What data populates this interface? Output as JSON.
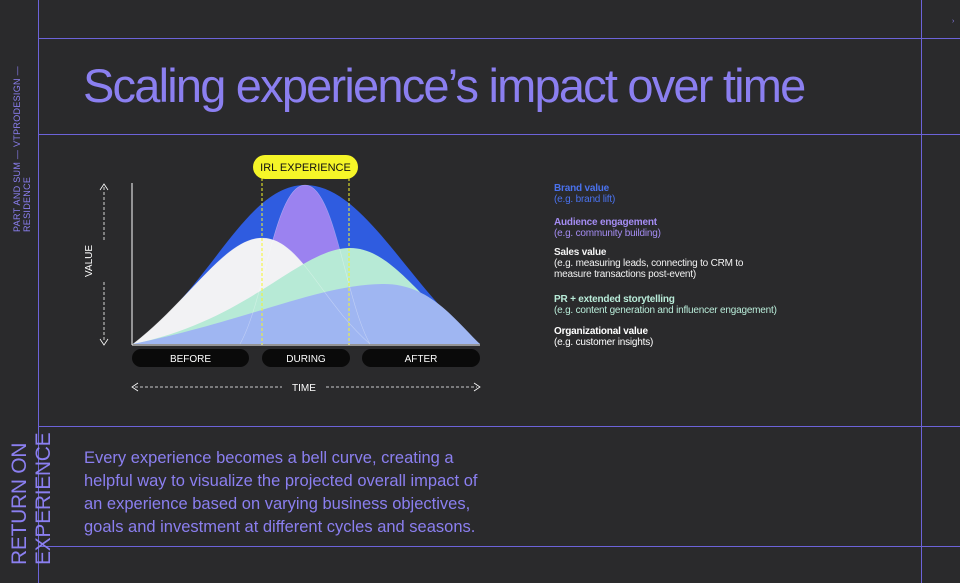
{
  "sidebar": {
    "top_text": "PART AND SUM — VTPRODESIGN — RESIDENCE",
    "bottom_text": "RETURN ON EXPERIENCE"
  },
  "page_marker": "›",
  "title": "Scaling experience’s impact over time",
  "diagram": {
    "highlight_label": "IRL EXPERIENCE",
    "y_axis_label": "VALUE",
    "x_axis_label": "TIME",
    "phases": [
      "BEFORE",
      "DURING",
      "AFTER"
    ]
  },
  "legend": [
    {
      "name": "Brand value",
      "detail": "(e.g. brand lift)",
      "color": "#3f6ae8"
    },
    {
      "name": "Audience engagement",
      "detail": "(e.g. community building)",
      "color": "#a48cf2"
    },
    {
      "name": "Sales value",
      "detail": "(e.g. measuring leads, connecting to CRM to measure transactions post-event)",
      "color": "#f3f3f3"
    },
    {
      "name": "PR + extended storytelling",
      "detail": "(e.g. content generation and influencer engagement)",
      "color": "#b9ecd9"
    },
    {
      "name": "Organizational value",
      "detail": "(e.g. customer insights)",
      "color": "#ffffff"
    }
  ],
  "colors": {
    "brand": "#2f5ce0",
    "audience": "#9b82f0",
    "sales": "#f2f2f4",
    "pr": "#b7ead6",
    "org": "#9fb6f2",
    "highlight": "#f5f528",
    "accent": "#8b7ff0"
  },
  "description": "Every experience becomes a bell curve, creating a helpful way to visualize the projected overall impact of an experience based on varying business objectives, goals and investment at different cycles and seasons."
}
